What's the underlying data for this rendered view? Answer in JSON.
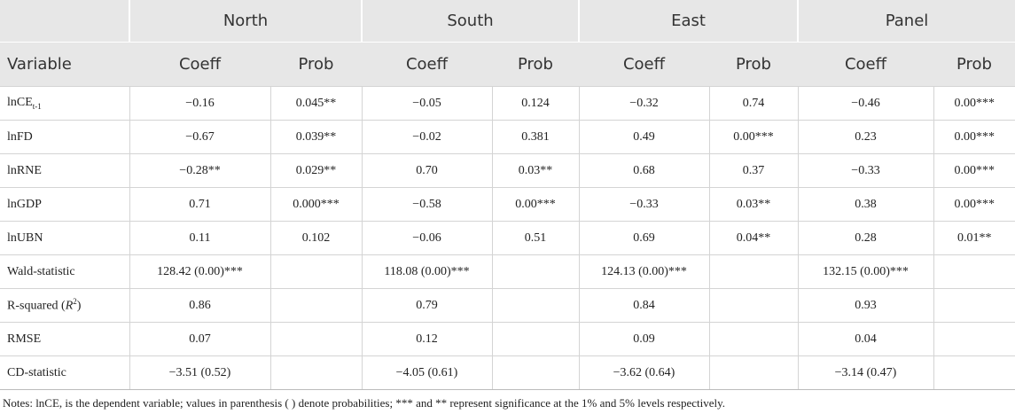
{
  "table": {
    "groups": [
      "North",
      "South",
      "East",
      "Panel"
    ],
    "variable_header": "Variable",
    "subheaders": [
      "Coeff",
      "Prob",
      "Coeff",
      "Prob",
      "Coeff",
      "Prob",
      "Coeff",
      "Prob"
    ],
    "rows": [
      {
        "label": "lnCE",
        "label_sub": "t-1",
        "cells": [
          "−0.16",
          "0.045**",
          "−0.05",
          "0.124",
          "−0.32",
          "0.74",
          "−0.46",
          "0.00***"
        ]
      },
      {
        "label": "lnFD",
        "cells": [
          "−0.67",
          "0.039**",
          "−0.02",
          "0.381",
          "0.49",
          "0.00***",
          "0.23",
          "0.00***"
        ]
      },
      {
        "label": "lnRNE",
        "cells": [
          "−0.28**",
          "0.029**",
          "0.70",
          "0.03**",
          "0.68",
          "0.37",
          "−0.33",
          "0.00***"
        ]
      },
      {
        "label": "lnGDP",
        "cells": [
          "0.71",
          "0.000***",
          "−0.58",
          "0.00***",
          "−0.33",
          "0.03**",
          "0.38",
          "0.00***"
        ]
      },
      {
        "label": "lnUBN",
        "cells": [
          "0.11",
          "0.102",
          "−0.06",
          "0.51",
          "0.69",
          "0.04**",
          "0.28",
          "0.01**"
        ]
      },
      {
        "label": "Wald-statistic",
        "cells": [
          "128.42 (0.00)***",
          null,
          "118.08 (0.00)***",
          null,
          "124.13 (0.00)***",
          null,
          "132.15 (0.00)***",
          null
        ]
      },
      {
        "label": "R-squared (",
        "label_italic": "R",
        "label_sup": "2",
        "label_end": ")",
        "cells": [
          "0.86",
          null,
          "0.79",
          null,
          "0.84",
          null,
          "0.93",
          null
        ]
      },
      {
        "label": "RMSE",
        "cells": [
          "0.07",
          null,
          "0.12",
          null,
          "0.09",
          null,
          "0.04",
          null
        ]
      },
      {
        "label": "CD-statistic",
        "cells": [
          "−3.51 (0.52)",
          null,
          "−4.05 (0.61)",
          null,
          "−3.62 (0.64)",
          null,
          "−3.14 (0.47)",
          null
        ]
      }
    ],
    "notes": "Notes: lnCE, is the dependent variable; values in parenthesis ( ) denote probabilities; *** and ** represent significance at the 1% and 5% levels respectively."
  }
}
